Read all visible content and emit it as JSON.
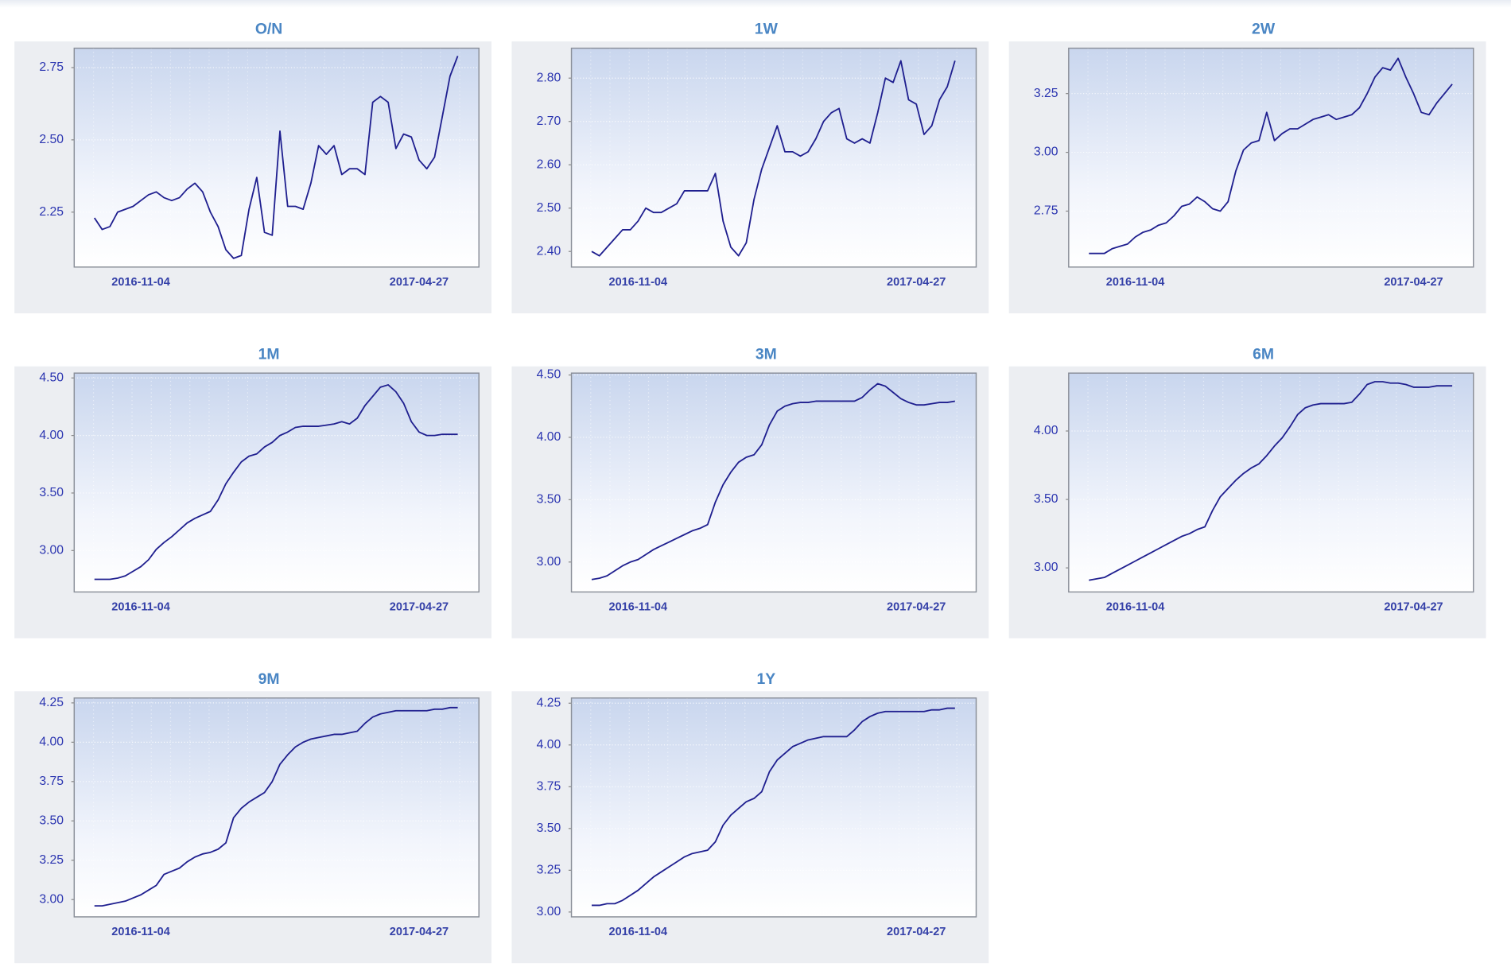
{
  "chart_data": [
    {
      "type": "line",
      "title": "O/N",
      "color": "#1f1f8f",
      "grid": true,
      "categories": [
        null,
        null,
        null,
        null,
        null,
        null,
        "2016-11-04",
        null,
        null,
        null,
        null,
        null,
        null,
        null,
        null,
        null,
        null,
        null,
        null,
        null,
        null,
        null,
        null,
        null,
        null,
        null,
        null,
        null,
        null,
        null,
        null,
        null,
        null,
        null,
        null,
        null,
        null,
        null,
        null,
        null,
        null,
        null,
        "2017-04-27",
        null,
        null,
        null,
        null,
        null
      ],
      "values": [
        2.23,
        2.19,
        2.2,
        2.25,
        2.26,
        2.27,
        2.29,
        2.31,
        2.32,
        2.3,
        2.29,
        2.3,
        2.33,
        2.35,
        2.32,
        2.25,
        2.2,
        2.12,
        2.09,
        2.1,
        2.26,
        2.37,
        2.18,
        2.17,
        2.53,
        2.27,
        2.27,
        2.26,
        2.35,
        2.48,
        2.45,
        2.48,
        2.38,
        2.4,
        2.4,
        2.38,
        2.63,
        2.65,
        2.63,
        2.47,
        2.52,
        2.51,
        2.43,
        2.4,
        2.44,
        2.58,
        2.72,
        2.79
      ],
      "ylim": [
        2.06,
        2.817
      ],
      "yticks": [
        2.25,
        {
          "value": 2.5,
          "label": "2.50"
        },
        2.75
      ]
    },
    {
      "type": "line",
      "title": "1W",
      "color": "#1f1f8f",
      "grid": true,
      "categories": [
        null,
        null,
        null,
        null,
        null,
        null,
        "2016-11-04",
        null,
        null,
        null,
        null,
        null,
        null,
        null,
        null,
        null,
        null,
        null,
        null,
        null,
        null,
        null,
        null,
        null,
        null,
        null,
        null,
        null,
        null,
        null,
        null,
        null,
        null,
        null,
        null,
        null,
        null,
        null,
        null,
        null,
        null,
        null,
        "2017-04-27",
        null,
        null,
        null,
        null,
        null
      ],
      "values": [
        2.4,
        2.39,
        2.41,
        2.43,
        2.45,
        2.45,
        2.47,
        2.5,
        2.49,
        2.49,
        2.5,
        2.51,
        2.54,
        2.54,
        2.54,
        2.54,
        2.58,
        2.47,
        2.41,
        2.39,
        2.42,
        2.52,
        2.59,
        2.64,
        2.69,
        2.63,
        2.63,
        2.62,
        2.63,
        2.66,
        2.7,
        2.72,
        2.73,
        2.66,
        2.65,
        2.66,
        2.65,
        2.72,
        2.8,
        2.79,
        2.84,
        2.75,
        2.74,
        2.67,
        2.69,
        2.75,
        2.78,
        2.84
      ],
      "ylim": [
        2.364,
        2.869
      ],
      "yticks": [
        {
          "value": 2.4,
          "label": "2.40"
        },
        {
          "value": 2.5,
          "label": "2.50"
        },
        {
          "value": 2.6,
          "label": "2.60"
        },
        {
          "value": 2.7,
          "label": "2.70"
        },
        {
          "value": 2.8,
          "label": "2.80"
        }
      ]
    },
    {
      "type": "line",
      "title": "2W",
      "color": "#1f1f8f",
      "grid": true,
      "categories": [
        null,
        null,
        null,
        null,
        null,
        null,
        "2016-11-04",
        null,
        null,
        null,
        null,
        null,
        null,
        null,
        null,
        null,
        null,
        null,
        null,
        null,
        null,
        null,
        null,
        null,
        null,
        null,
        null,
        null,
        null,
        null,
        null,
        null,
        null,
        null,
        null,
        null,
        null,
        null,
        null,
        null,
        null,
        null,
        "2017-04-27",
        null,
        null,
        null,
        null,
        null
      ],
      "values": [
        2.57,
        2.57,
        2.57,
        2.59,
        2.6,
        2.61,
        2.64,
        2.66,
        2.67,
        2.69,
        2.7,
        2.73,
        2.77,
        2.78,
        2.81,
        2.79,
        2.76,
        2.75,
        2.79,
        2.92,
        3.01,
        3.04,
        3.05,
        3.17,
        3.05,
        3.08,
        3.1,
        3.1,
        3.12,
        3.14,
        3.15,
        3.16,
        3.14,
        3.15,
        3.16,
        3.19,
        3.25,
        3.32,
        3.36,
        3.35,
        3.4,
        3.32,
        3.25,
        3.17,
        3.16,
        3.21,
        3.25,
        3.29
      ],
      "ylim": [
        2.512,
        3.443
      ],
      "yticks": [
        2.75,
        {
          "value": 3,
          "label": "3.00"
        },
        3.25
      ]
    },
    {
      "type": "line",
      "title": "1M",
      "color": "#1f1f8f",
      "grid": true,
      "categories": [
        null,
        null,
        null,
        null,
        null,
        null,
        "2016-11-04",
        null,
        null,
        null,
        null,
        null,
        null,
        null,
        null,
        null,
        null,
        null,
        null,
        null,
        null,
        null,
        null,
        null,
        null,
        null,
        null,
        null,
        null,
        null,
        null,
        null,
        null,
        null,
        null,
        null,
        null,
        null,
        null,
        null,
        null,
        null,
        "2017-04-27",
        null,
        null,
        null,
        null,
        null
      ],
      "values": [
        2.75,
        2.75,
        2.75,
        2.76,
        2.78,
        2.82,
        2.86,
        2.92,
        3.01,
        3.07,
        3.12,
        3.18,
        3.24,
        3.28,
        3.31,
        3.34,
        3.44,
        3.58,
        3.68,
        3.77,
        3.82,
        3.84,
        3.9,
        3.94,
        4.0,
        4.03,
        4.07,
        4.08,
        4.08,
        4.08,
        4.09,
        4.1,
        4.12,
        4.1,
        4.15,
        4.26,
        4.34,
        4.42,
        4.44,
        4.38,
        4.28,
        4.12,
        4.03,
        4.0,
        4.0,
        4.01,
        4.01,
        4.01
      ],
      "ylim": [
        2.64,
        4.542
      ],
      "yticks": [
        {
          "value": 3,
          "label": "3.00"
        },
        {
          "value": 3.5,
          "label": "3.50"
        },
        {
          "value": 4,
          "label": "4.00"
        },
        {
          "value": 4.5,
          "label": "4.50"
        }
      ]
    },
    {
      "type": "line",
      "title": "3M",
      "color": "#1f1f8f",
      "grid": true,
      "categories": [
        null,
        null,
        null,
        null,
        null,
        null,
        "2016-11-04",
        null,
        null,
        null,
        null,
        null,
        null,
        null,
        null,
        null,
        null,
        null,
        null,
        null,
        null,
        null,
        null,
        null,
        null,
        null,
        null,
        null,
        null,
        null,
        null,
        null,
        null,
        null,
        null,
        null,
        null,
        null,
        null,
        null,
        null,
        null,
        "2017-04-27",
        null,
        null,
        null,
        null,
        null
      ],
      "values": [
        2.86,
        2.87,
        2.89,
        2.93,
        2.97,
        3.0,
        3.02,
        3.06,
        3.1,
        3.13,
        3.16,
        3.19,
        3.22,
        3.25,
        3.27,
        3.3,
        3.48,
        3.62,
        3.72,
        3.8,
        3.84,
        3.86,
        3.94,
        4.1,
        4.21,
        4.25,
        4.27,
        4.28,
        4.28,
        4.29,
        4.29,
        4.29,
        4.29,
        4.29,
        4.29,
        4.32,
        4.38,
        4.43,
        4.41,
        4.36,
        4.31,
        4.28,
        4.26,
        4.26,
        4.27,
        4.28,
        4.28,
        4.29
      ],
      "ylim": [
        2.76,
        4.515
      ],
      "yticks": [
        {
          "value": 3,
          "label": "3.00"
        },
        {
          "value": 3.5,
          "label": "3.50"
        },
        {
          "value": 4,
          "label": "4.00"
        },
        {
          "value": 4.5,
          "label": "4.50"
        }
      ]
    },
    {
      "type": "line",
      "title": "6M",
      "color": "#1f1f8f",
      "grid": true,
      "categories": [
        null,
        null,
        null,
        null,
        null,
        null,
        "2016-11-04",
        null,
        null,
        null,
        null,
        null,
        null,
        null,
        null,
        null,
        null,
        null,
        null,
        null,
        null,
        null,
        null,
        null,
        null,
        null,
        null,
        null,
        null,
        null,
        null,
        null,
        null,
        null,
        null,
        null,
        null,
        null,
        null,
        null,
        null,
        null,
        "2017-04-27",
        null,
        null,
        null,
        null,
        null
      ],
      "values": [
        2.91,
        2.92,
        2.93,
        2.96,
        2.99,
        3.02,
        3.05,
        3.08,
        3.11,
        3.14,
        3.17,
        3.2,
        3.23,
        3.25,
        3.28,
        3.3,
        3.42,
        3.52,
        3.58,
        3.64,
        3.69,
        3.73,
        3.76,
        3.82,
        3.89,
        3.95,
        4.03,
        4.12,
        4.17,
        4.19,
        4.2,
        4.2,
        4.2,
        4.2,
        4.21,
        4.27,
        4.34,
        4.36,
        4.36,
        4.35,
        4.35,
        4.34,
        4.32,
        4.32,
        4.32,
        4.33,
        4.33,
        4.33
      ],
      "ylim": [
        2.824,
        4.423
      ],
      "yticks": [
        {
          "value": 3,
          "label": "3.00"
        },
        {
          "value": 3.5,
          "label": "3.50"
        },
        {
          "value": 4,
          "label": "4.00"
        }
      ]
    },
    {
      "type": "line",
      "title": "9M",
      "color": "#1f1f8f",
      "grid": true,
      "categories": [
        null,
        null,
        null,
        null,
        null,
        null,
        "2016-11-04",
        null,
        null,
        null,
        null,
        null,
        null,
        null,
        null,
        null,
        null,
        null,
        null,
        null,
        null,
        null,
        null,
        null,
        null,
        null,
        null,
        null,
        null,
        null,
        null,
        null,
        null,
        null,
        null,
        null,
        null,
        null,
        null,
        null,
        null,
        null,
        "2017-04-27",
        null,
        null,
        null,
        null,
        null
      ],
      "values": [
        2.96,
        2.96,
        2.97,
        2.98,
        2.99,
        3.01,
        3.03,
        3.06,
        3.09,
        3.16,
        3.18,
        3.2,
        3.24,
        3.27,
        3.29,
        3.3,
        3.32,
        3.36,
        3.52,
        3.58,
        3.62,
        3.65,
        3.68,
        3.75,
        3.86,
        3.92,
        3.97,
        4.0,
        4.02,
        4.03,
        4.04,
        4.05,
        4.05,
        4.06,
        4.07,
        4.12,
        4.16,
        4.18,
        4.19,
        4.2,
        4.2,
        4.2,
        4.2,
        4.2,
        4.21,
        4.21,
        4.22,
        4.22
      ],
      "ylim": [
        2.89,
        4.281
      ],
      "yticks": [
        {
          "value": 3,
          "label": "3.00"
        },
        3.25,
        {
          "value": 3.5,
          "label": "3.50"
        },
        3.75,
        {
          "value": 4,
          "label": "4.00"
        },
        4.25
      ]
    },
    {
      "type": "line",
      "title": "1Y",
      "color": "#1f1f8f",
      "grid": true,
      "categories": [
        null,
        null,
        null,
        null,
        null,
        null,
        "2016-11-04",
        null,
        null,
        null,
        null,
        null,
        null,
        null,
        null,
        null,
        null,
        null,
        null,
        null,
        null,
        null,
        null,
        null,
        null,
        null,
        null,
        null,
        null,
        null,
        null,
        null,
        null,
        null,
        null,
        null,
        null,
        null,
        null,
        null,
        null,
        null,
        "2017-04-27",
        null,
        null,
        null,
        null,
        null
      ],
      "values": [
        3.04,
        3.04,
        3.05,
        3.05,
        3.07,
        3.1,
        3.13,
        3.17,
        3.21,
        3.24,
        3.27,
        3.3,
        3.33,
        3.35,
        3.36,
        3.37,
        3.42,
        3.52,
        3.58,
        3.62,
        3.66,
        3.68,
        3.72,
        3.84,
        3.91,
        3.95,
        3.99,
        4.01,
        4.03,
        4.04,
        4.05,
        4.05,
        4.05,
        4.05,
        4.09,
        4.14,
        4.17,
        4.19,
        4.2,
        4.2,
        4.2,
        4.2,
        4.2,
        4.2,
        4.21,
        4.21,
        4.22,
        4.22
      ],
      "ylim": [
        2.971,
        4.281
      ],
      "yticks": [
        {
          "value": 3,
          "label": "3.00"
        },
        3.25,
        {
          "value": 3.5,
          "label": "3.50"
        },
        3.75,
        {
          "value": 4,
          "label": "4.00"
        },
        4.25
      ]
    }
  ]
}
